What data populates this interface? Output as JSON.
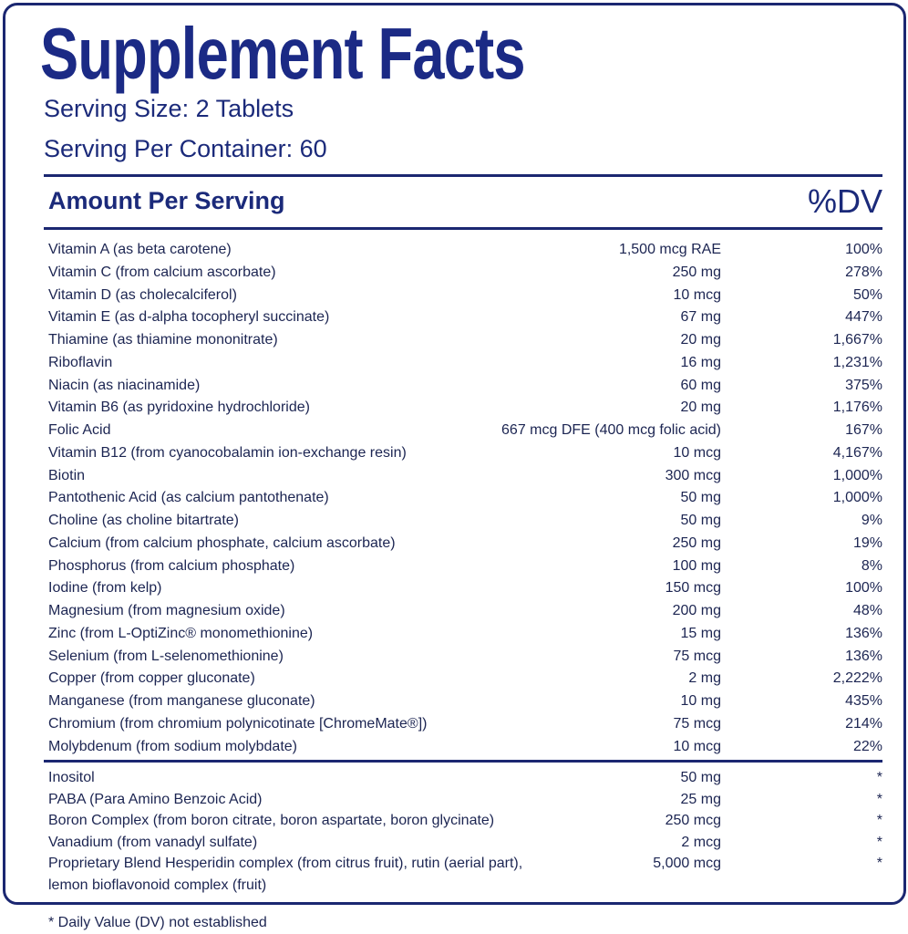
{
  "title": "Supplement Facts",
  "serving_size": "Serving Size: 2 Tablets",
  "servings_per_container": "Serving Per Container: 60",
  "header": {
    "amount": "Amount Per Serving",
    "dv": "%DV"
  },
  "nutrients": [
    {
      "name": "Vitamin A (as beta carotene)",
      "amount": "1,500 mcg RAE",
      "dv": "100%"
    },
    {
      "name": "Vitamin C (from calcium ascorbate)",
      "amount": "250 mg",
      "dv": "278%"
    },
    {
      "name": "Vitamin D (as cholecalciferol)",
      "amount": "10 mcg",
      "dv": "50%"
    },
    {
      "name": "Vitamin E (as d-alpha tocopheryl succinate)",
      "amount": "67 mg",
      "dv": "447%"
    },
    {
      "name": "Thiamine (as thiamine mononitrate)",
      "amount": "20 mg",
      "dv": "1,667%"
    },
    {
      "name": "Riboflavin",
      "amount": "16 mg",
      "dv": "1,231%"
    },
    {
      "name": "Niacin (as niacinamide)",
      "amount": "60 mg",
      "dv": "375%"
    },
    {
      "name": "Vitamin B6 (as pyridoxine hydrochloride)",
      "amount": "20 mg",
      "dv": "1,176%"
    },
    {
      "name": "Folic Acid",
      "amount": "667 mcg DFE (400 mcg folic acid)",
      "dv": "167%"
    },
    {
      "name": "Vitamin B12 (from cyanocobalamin ion-exchange resin)",
      "amount": "10 mcg",
      "dv": "4,167%"
    },
    {
      "name": "Biotin",
      "amount": "300 mcg",
      "dv": "1,000%"
    },
    {
      "name": "Pantothenic Acid (as calcium pantothenate)",
      "amount": "50 mg",
      "dv": "1,000%"
    },
    {
      "name": "Choline (as choline bitartrate)",
      "amount": "50 mg",
      "dv": "9%"
    },
    {
      "name": "Calcium (from calcium phosphate, calcium ascorbate)",
      "amount": "250 mg",
      "dv": "19%"
    },
    {
      "name": "Phosphorus (from calcium phosphate)",
      "amount": "100 mg",
      "dv": "8%"
    },
    {
      "name": "Iodine (from kelp)",
      "amount": "150 mcg",
      "dv": "100%"
    },
    {
      "name": "Magnesium (from magnesium oxide)",
      "amount": "200 mg",
      "dv": "48%"
    },
    {
      "name": "Zinc (from L-OptiZinc® monomethionine)",
      "amount": "15 mg",
      "dv": "136%"
    },
    {
      "name": "Selenium (from L-selenomethionine)",
      "amount": "75 mcg",
      "dv": "136%"
    },
    {
      "name": "Copper (from copper gluconate)",
      "amount": "2 mg",
      "dv": "2,222%"
    },
    {
      "name": "Manganese (from manganese gluconate)",
      "amount": "10 mg",
      "dv": "435%"
    },
    {
      "name": "Chromium (from chromium polynicotinate [ChromeMate®])",
      "amount": "75 mcg",
      "dv": "214%"
    },
    {
      "name": "Molybdenum (from sodium molybdate)",
      "amount": "10 mcg",
      "dv": "22%"
    }
  ],
  "other": [
    {
      "name": "Inositol",
      "amount": "50 mg",
      "dv": "*"
    },
    {
      "name": "PABA (Para Amino Benzoic Acid)",
      "amount": "25 mg",
      "dv": "*"
    },
    {
      "name": "Boron Complex (from boron citrate, boron aspartate, boron glycinate)",
      "amount": "250 mcg",
      "dv": "*"
    },
    {
      "name": "Vanadium (from vanadyl sulfate)",
      "amount": "2 mcg",
      "dv": "*"
    },
    {
      "name": "Proprietary Blend Hesperidin complex (from citrus fruit), rutin (aerial part),",
      "name_line2": "lemon bioflavonoid complex (fruit)",
      "amount": "5,000 mcg",
      "dv": "*"
    }
  ],
  "footnote": "* Daily Value (DV) not established"
}
